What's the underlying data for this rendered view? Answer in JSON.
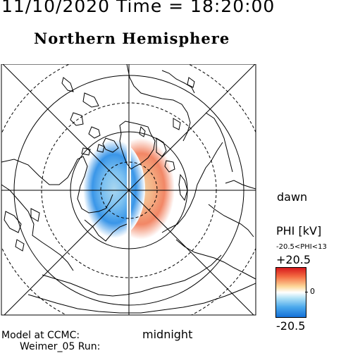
{
  "header": {
    "timestamp": "11/10/2020 Time = 18:20:00",
    "hemisphere": "Northern Hemisphere"
  },
  "map": {
    "projection": "polar-stereographic",
    "labels": {
      "dawn": "dawn",
      "midnight": "midnight"
    },
    "features": [
      "coastlines",
      "latitude-circles",
      "meridians",
      "potential-pattern"
    ],
    "pattern": {
      "positive_side": "dawn",
      "negative_side": "dusk"
    }
  },
  "footer": {
    "model_line1": "Model at CCMC:",
    "model_line2": "Weimer_05 Run:"
  },
  "legend": {
    "title": "PHI [kV]",
    "range": "-20.5<PHI<13",
    "max_label": "+20.5",
    "zero_label": "0",
    "min_label": "-20.5",
    "colors": {
      "max": "#d7191c",
      "zero": "#ffffff",
      "min": "#1571d8"
    }
  }
}
